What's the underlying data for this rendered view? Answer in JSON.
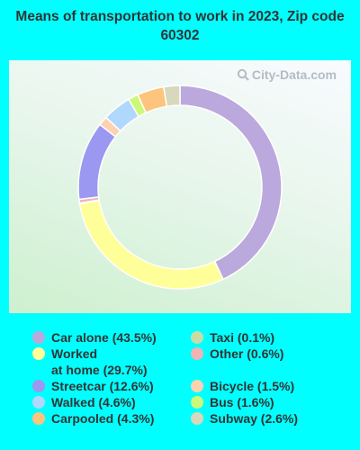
{
  "title": "Means of transportation to work in 2023, Zip code 60302",
  "watermark": "City-Data.com",
  "chart_data": {
    "type": "pie",
    "title": "Means of transportation to work in 2023, Zip code 60302",
    "donut": true,
    "start_angle_deg": 0,
    "direction": "clockwise",
    "slices": [
      {
        "label": "Car alone",
        "legend": "Car alone (43.5%)",
        "value": 43.5,
        "color": "#bba8dc"
      },
      {
        "label": "Worked at home",
        "legend": "Worked\nat home (29.7%)",
        "value": 29.7,
        "color": "#ffff99"
      },
      {
        "label": "Taxi",
        "legend": "Taxi (0.1%)",
        "value": 0.1,
        "color": "#c8dca6"
      },
      {
        "label": "Other",
        "legend": "Other (0.6%)",
        "value": 0.6,
        "color": "#f0b4b4"
      },
      {
        "label": "Streetcar",
        "legend": "Streetcar (12.6%)",
        "value": 12.6,
        "color": "#9a98f0"
      },
      {
        "label": "Bicycle",
        "legend": "Bicycle (1.5%)",
        "value": 1.5,
        "color": "#fcd2b0"
      },
      {
        "label": "Walked",
        "legend": "Walked (4.6%)",
        "value": 4.6,
        "color": "#b0d8fc"
      },
      {
        "label": "Bus",
        "legend": "Bus (1.6%)",
        "value": 1.6,
        "color": "#ccf878"
      },
      {
        "label": "Carpooled",
        "legend": "Carpooled (4.3%)",
        "value": 4.3,
        "color": "#fcc47c"
      },
      {
        "label": "Subway",
        "legend": "Subway (2.6%)",
        "value": 2.6,
        "color": "#d8d8bc"
      }
    ],
    "legend_columns": [
      [
        "Car alone",
        "Worked at home",
        "Streetcar",
        "Walked",
        "Carpooled"
      ],
      [
        "Taxi",
        "Other",
        "Bicycle",
        "Bus",
        "Subway"
      ]
    ]
  }
}
